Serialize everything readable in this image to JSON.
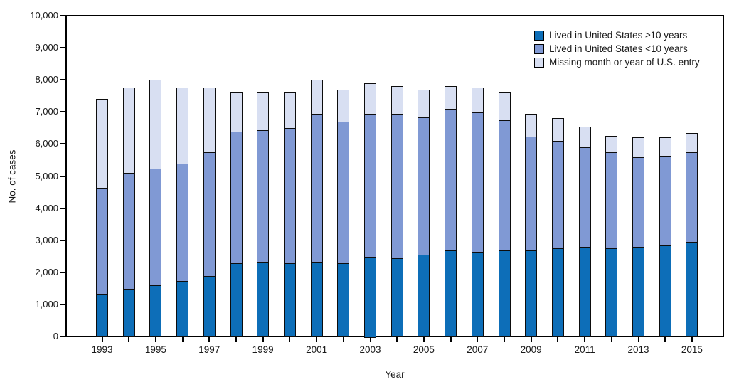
{
  "figure": {
    "y_axis_title": "No. of cases",
    "x_axis_title": "Year"
  },
  "colors": {
    "axis_line": "#000000",
    "text": "#1a1a1a",
    "background": "#ffffff",
    "series_ge10": "#0d6eb8",
    "series_lt10": "#8099d4",
    "series_missing": "#d8dff2"
  },
  "chart_data": {
    "type": "bar",
    "stacked": true,
    "xlabel": "Year",
    "ylabel": "No. of cases",
    "ylim": [
      0,
      10000
    ],
    "y_tick_interval": 1000,
    "y_tick_labels": [
      "0",
      "1,000",
      "2,000",
      "3,000",
      "4,000",
      "5,000",
      "6,000",
      "7,000",
      "8,000",
      "9,000",
      "10,000"
    ],
    "grid": false,
    "legend_position": "top-right-inside",
    "categories": [
      1993,
      1994,
      1995,
      1996,
      1997,
      1998,
      1999,
      2000,
      2001,
      2002,
      2003,
      2004,
      2005,
      2006,
      2007,
      2008,
      2009,
      2010,
      2011,
      2012,
      2013,
      2014,
      2015
    ],
    "x_labeled_years": [
      1993,
      1995,
      1997,
      1999,
      2001,
      2003,
      2005,
      2007,
      2009,
      2011,
      2013,
      2015
    ],
    "series": [
      {
        "name": "Lived in United States ≥10 years",
        "color": "#0d6eb8",
        "values": [
          1350,
          1500,
          1600,
          1750,
          1900,
          2300,
          2350,
          2300,
          2350,
          2300,
          2500,
          2450,
          2550,
          2700,
          2650,
          2700,
          2700,
          2750,
          2800,
          2750,
          2800,
          2850,
          2950
        ]
      },
      {
        "name": "Lived in United States <10 years",
        "color": "#8099d4",
        "values": [
          3300,
          3600,
          3650,
          3650,
          3850,
          4100,
          4100,
          4200,
          4600,
          4400,
          4450,
          4500,
          4300,
          4400,
          4350,
          4050,
          3550,
          3350,
          3100,
          3000,
          2800,
          2800,
          2800
        ]
      },
      {
        "name": "Missing month or year of U.S. entry",
        "color": "#d8dff2",
        "values": [
          2750,
          2650,
          2750,
          2350,
          2000,
          1200,
          1150,
          1100,
          1050,
          1000,
          950,
          850,
          850,
          700,
          750,
          850,
          700,
          700,
          650,
          500,
          600,
          550,
          600
        ]
      }
    ]
  }
}
